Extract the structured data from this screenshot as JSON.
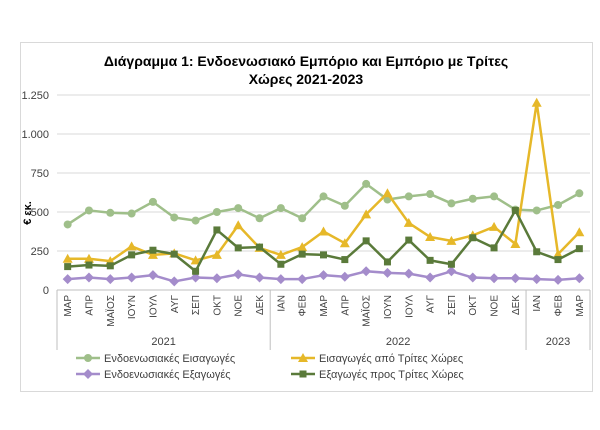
{
  "chart_data": {
    "type": "line",
    "title_lines": [
      "Διάγραμμα 1: Ενδοενωσιακό Εμπόριο και Εμπόριο με Τρίτες",
      "Χώρες 2021-2023"
    ],
    "xlabel": "",
    "ylabel": "€ εκ.",
    "ylim": [
      0,
      1250
    ],
    "yticks": [
      0,
      250,
      500,
      750,
      1000,
      1250
    ],
    "ytick_labels": [
      "0",
      "250",
      "500",
      "750",
      "1.000",
      "1.250"
    ],
    "grid": true,
    "legend_position": "bottom",
    "categories": [
      "ΜΑΡ",
      "ΑΠΡ",
      "ΜΑΪΟΣ",
      "ΙΟΥΝ",
      "ΙΟΥΛ",
      "ΑΥΓ",
      "ΣΕΠ",
      "ΟΚΤ",
      "ΝΟΕ",
      "ΔΕΚ",
      "ΙΑΝ",
      "ΦΕΒ",
      "ΜΑΡ",
      "ΑΠΡ",
      "ΜΑΪΟΣ",
      "ΙΟΥΝ",
      "ΙΟΥΛ",
      "ΑΥΓ",
      "ΣΕΠ",
      "ΟΚΤ",
      "ΝΟΕ",
      "ΔΕΚ",
      "ΙΑΝ",
      "ΦΕΒ",
      "ΜΑΡ"
    ],
    "year_groups": [
      {
        "label": "2021",
        "count": 10
      },
      {
        "label": "2022",
        "count": 12
      },
      {
        "label": "2023",
        "count": 3
      }
    ],
    "series": [
      {
        "name": "Ενδοενωσιακές Εισαγωγές",
        "color": "#9fbf8a",
        "marker": "circle",
        "values": [
          420,
          510,
          495,
          490,
          565,
          465,
          445,
          500,
          525,
          460,
          525,
          460,
          600,
          540,
          680,
          580,
          600,
          615,
          555,
          585,
          600,
          515,
          510,
          545,
          620
        ]
      },
      {
        "name": "Εισαγωγές από Τρίτες Χώρες",
        "color": "#e6b829",
        "marker": "triangle",
        "values": [
          200,
          200,
          185,
          280,
          225,
          235,
          190,
          225,
          415,
          270,
          225,
          275,
          375,
          300,
          485,
          620,
          430,
          340,
          315,
          350,
          405,
          295,
          1200,
          230,
          370
        ]
      },
      {
        "name": "Ενδοενωσιακές Εξαγωγές",
        "color": "#a48ccb",
        "marker": "diamond",
        "values": [
          70,
          80,
          70,
          80,
          95,
          55,
          80,
          75,
          100,
          80,
          70,
          70,
          95,
          85,
          120,
          110,
          105,
          80,
          120,
          80,
          75,
          75,
          70,
          65,
          75
        ]
      },
      {
        "name": "Εξαγωγές προς Τρίτες Χώρες",
        "color": "#5a7a3a",
        "marker": "square",
        "values": [
          150,
          160,
          155,
          225,
          255,
          230,
          120,
          385,
          270,
          275,
          165,
          230,
          225,
          195,
          315,
          180,
          320,
          190,
          165,
          335,
          270,
          510,
          245,
          195,
          265
        ]
      }
    ]
  }
}
